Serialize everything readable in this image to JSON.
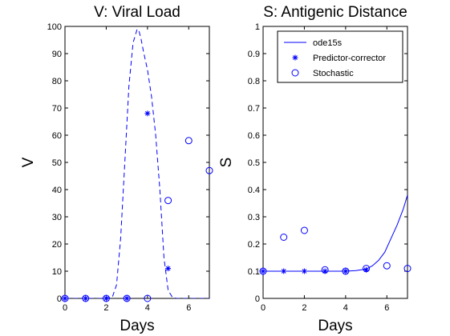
{
  "chart_data": [
    {
      "type": "line",
      "title": "V: Viral Load",
      "xlabel": "Days",
      "ylabel": "V",
      "xlim": [
        0,
        7
      ],
      "ylim": [
        0,
        100
      ],
      "xticks": [
        "0",
        "2",
        "4",
        "6"
      ],
      "yticks": [
        "0",
        "10",
        "20",
        "30",
        "40",
        "50",
        "60",
        "70",
        "80",
        "90",
        "100"
      ],
      "grid": false,
      "series": [
        {
          "style": "dashed-line",
          "color": "#0000ff",
          "x": [
            0,
            1,
            2,
            2.3,
            2.5,
            2.7,
            2.9,
            3.1,
            3.3,
            3.5,
            3.6,
            3.7,
            3.8,
            4.0,
            4.2,
            4.4,
            4.6,
            4.8,
            5.0,
            5.2,
            5.4,
            7
          ],
          "y": [
            0,
            0,
            0,
            0.5,
            5,
            22,
            50,
            78,
            94,
            99,
            98,
            95,
            91,
            84,
            74,
            60,
            40,
            15,
            3,
            0.5,
            0,
            0
          ]
        },
        {
          "style": "star-marker",
          "color": "#0000ff",
          "x": [
            0,
            1,
            2,
            3,
            4,
            5
          ],
          "y": [
            0,
            0,
            0,
            0,
            68,
            11
          ]
        },
        {
          "style": "circle-marker",
          "color": "#0000ff",
          "x": [
            0,
            1,
            2,
            3,
            4,
            5,
            6,
            7
          ],
          "y": [
            0,
            0,
            0,
            0,
            0,
            36,
            58,
            47
          ]
        }
      ]
    },
    {
      "type": "line",
      "title": "S: Antigenic Distance",
      "xlabel": "Days",
      "ylabel": "S",
      "xlim": [
        0,
        7
      ],
      "ylim": [
        0,
        1
      ],
      "xticks": [
        "0",
        "2",
        "4",
        "6"
      ],
      "yticks": [
        "0",
        "0.1",
        "0.2",
        "0.3",
        "0.4",
        "0.5",
        "0.6",
        "0.7",
        "0.8",
        "0.9",
        "1"
      ],
      "grid": false,
      "legend_position": "top-right",
      "series": [
        {
          "name": "ode15s",
          "style": "solid-line",
          "color": "#0000ff",
          "x": [
            0,
            1,
            2,
            3,
            4,
            4.5,
            5,
            5.3,
            5.6,
            5.9,
            6.2,
            6.5,
            6.8,
            7
          ],
          "y": [
            0.1,
            0.1,
            0.1,
            0.1,
            0.1,
            0.102,
            0.108,
            0.12,
            0.14,
            0.17,
            0.22,
            0.27,
            0.33,
            0.38
          ]
        },
        {
          "name": "Predictor-corrector",
          "style": "star-marker",
          "color": "#0000ff",
          "x": [
            0,
            1,
            2,
            3,
            4,
            5
          ],
          "y": [
            0.1,
            0.1,
            0.1,
            0.1,
            0.1,
            0.105
          ]
        },
        {
          "name": "Stochastic",
          "style": "circle-marker",
          "color": "#0000ff",
          "x": [
            0,
            1,
            2,
            3,
            4,
            5,
            6,
            7
          ],
          "y": [
            0.1,
            0.225,
            0.25,
            0.105,
            0.1,
            0.11,
            0.12,
            0.11
          ]
        }
      ]
    }
  ]
}
